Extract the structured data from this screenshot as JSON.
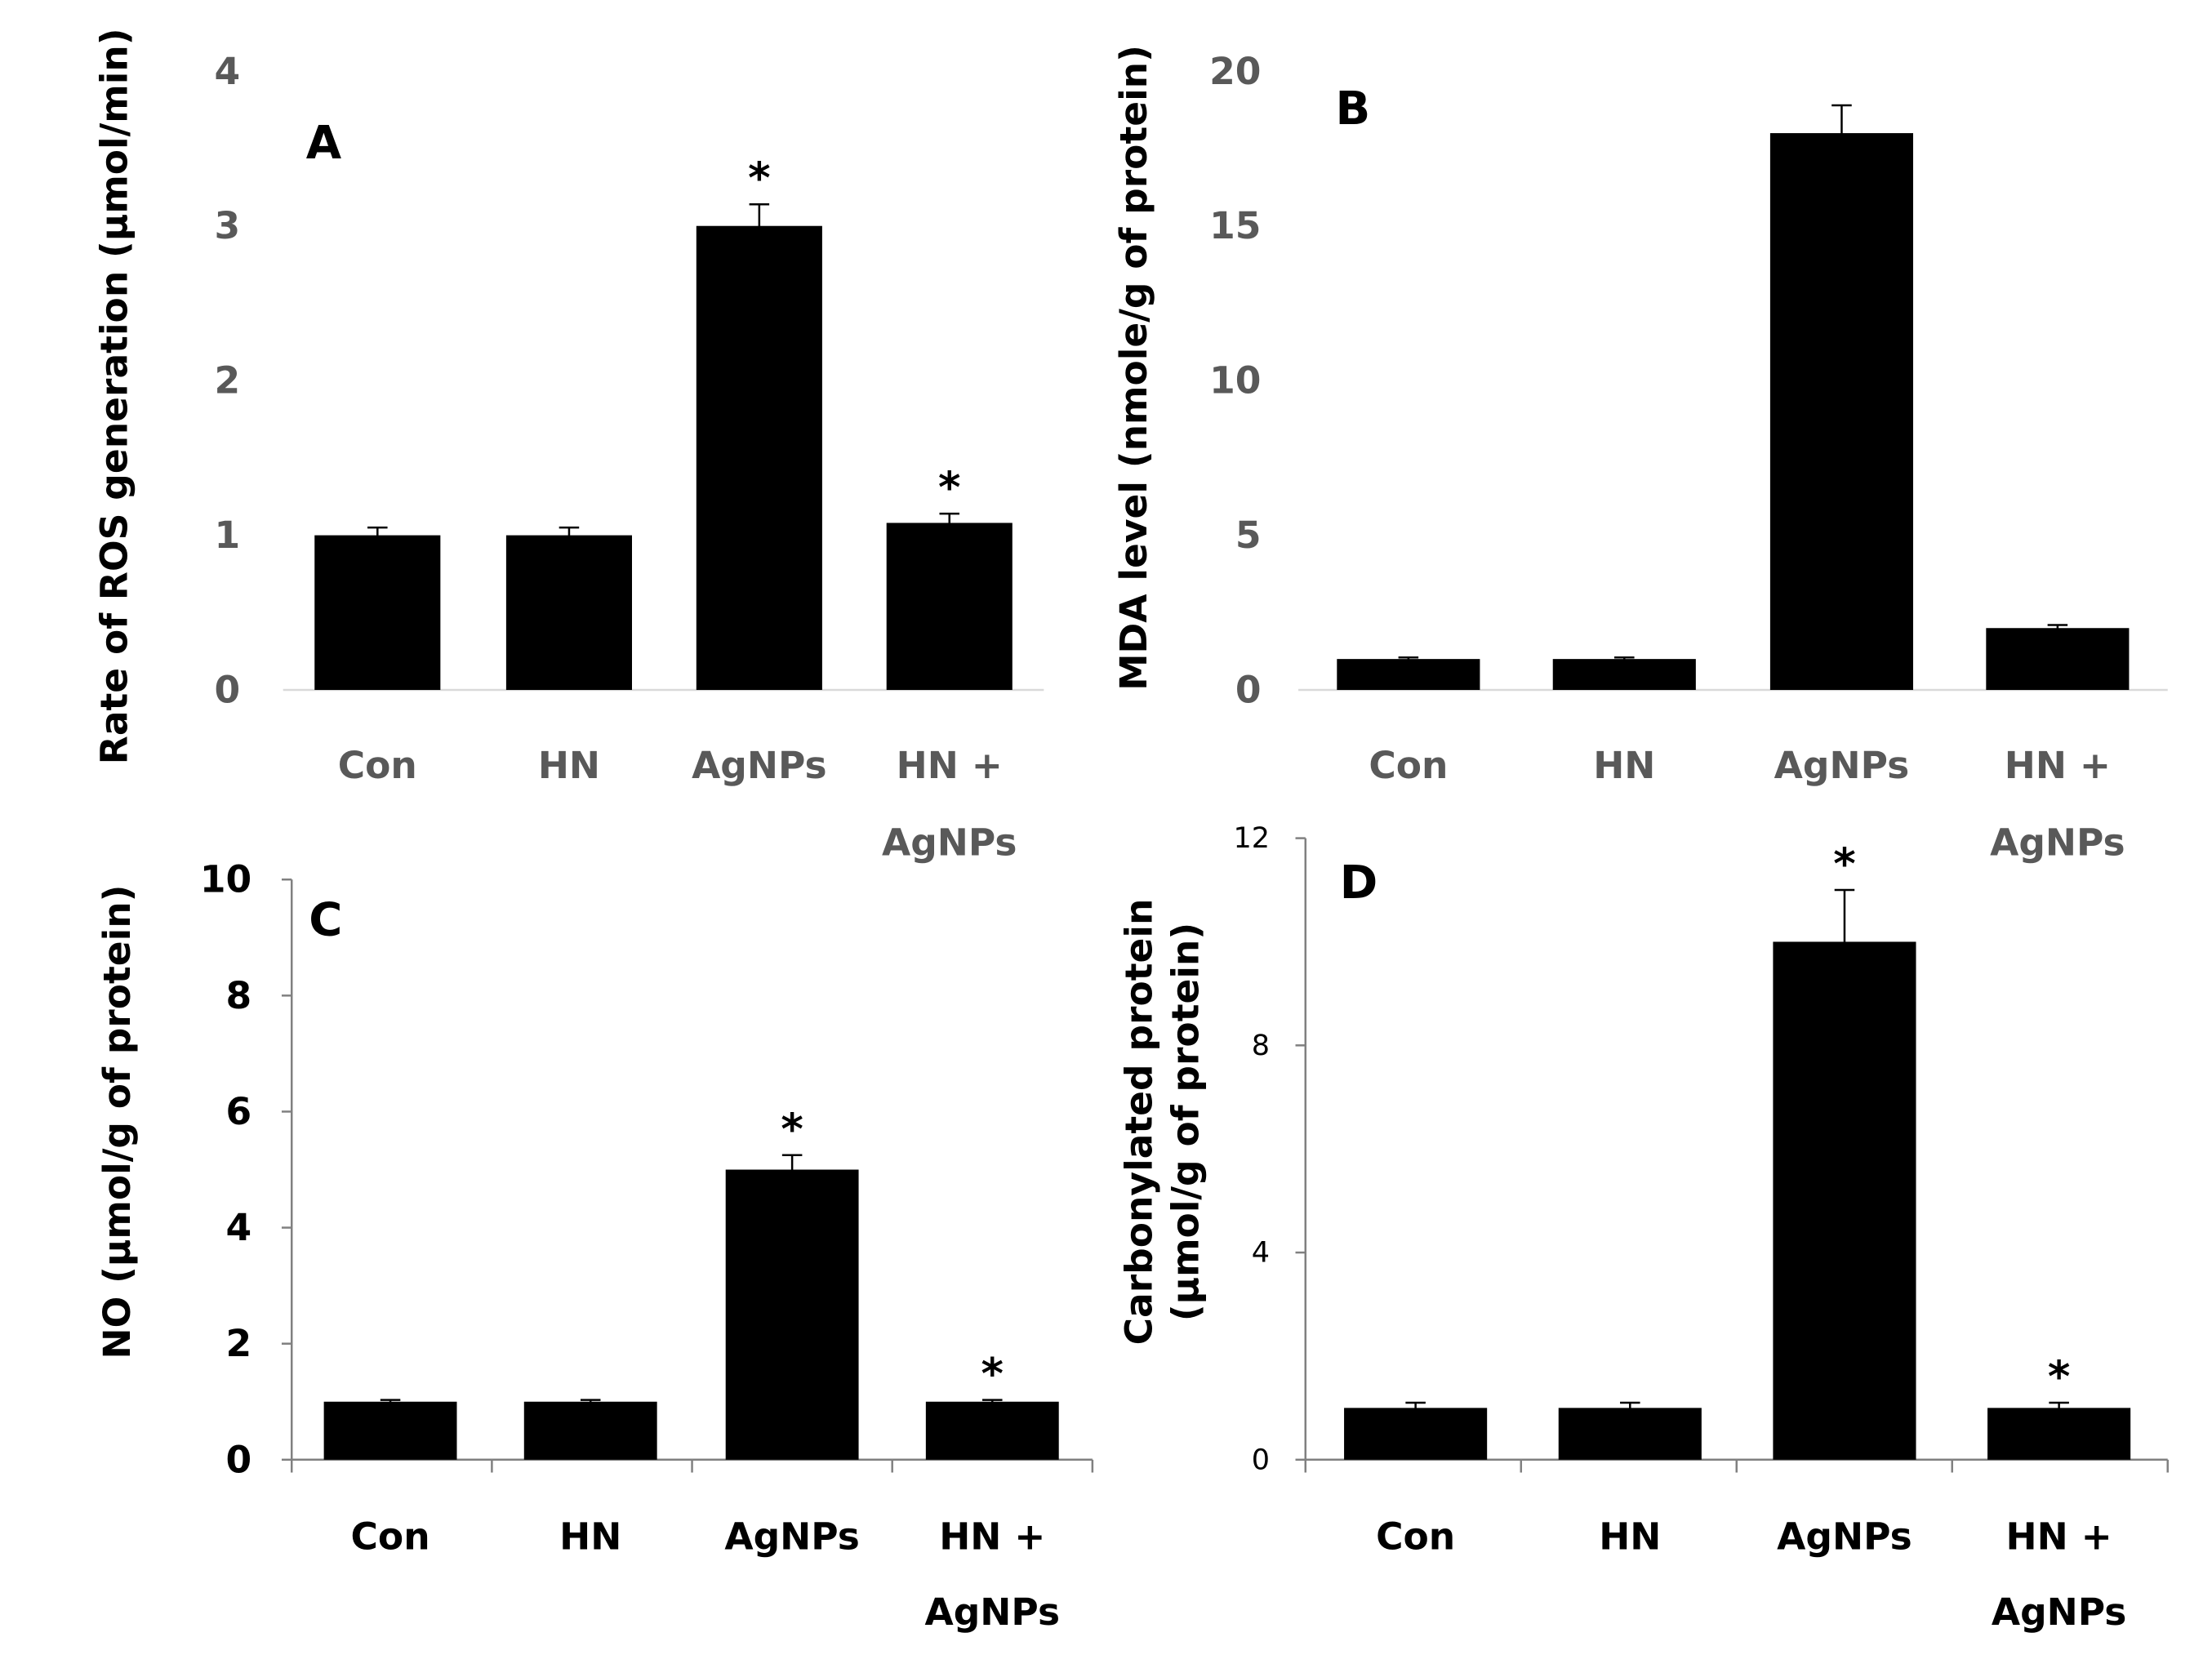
{
  "chart_data": [
    {
      "panel": "A",
      "type": "bar",
      "ylabel": "Rate of ROS generation (μmol/min)",
      "ylim": [
        0,
        4
      ],
      "yticks": [
        0,
        1,
        2,
        3,
        4
      ],
      "categories": [
        [
          "Con"
        ],
        [
          "HN"
        ],
        [
          "AgNPs"
        ],
        [
          "HN +",
          "AgNPs"
        ]
      ],
      "values": [
        1.0,
        1.0,
        3.0,
        1.08
      ],
      "errors": [
        0.05,
        0.05,
        0.14,
        0.06
      ],
      "stars": [
        "",
        "",
        "*",
        "*"
      ],
      "axis_color": "#d9d9d9",
      "text_color": "#595959"
    },
    {
      "panel": "B",
      "type": "bar",
      "ylabel": "MDA level  (nmole/g of protein)",
      "ylim": [
        0,
        20
      ],
      "yticks": [
        0,
        5,
        10,
        15,
        20
      ],
      "categories": [
        [
          "Con"
        ],
        [
          "HN"
        ],
        [
          "AgNPs"
        ],
        [
          "HN +",
          "AgNPs"
        ]
      ],
      "values": [
        1.0,
        1.0,
        18.0,
        2.0
      ],
      "errors": [
        0.05,
        0.05,
        0.9,
        0.1
      ],
      "stars": [
        "",
        "",
        "",
        ""
      ],
      "axis_color": "#d9d9d9",
      "text_color": "#595959"
    },
    {
      "panel": "C",
      "type": "bar",
      "ylabel": "NO (μmol/g of protein)",
      "ylim": [
        0,
        10
      ],
      "yticks": [
        0,
        2,
        4,
        6,
        8,
        10
      ],
      "categories": [
        [
          "Con"
        ],
        [
          "HN"
        ],
        [
          "AgNPs"
        ],
        [
          "HN +",
          "AgNPs"
        ]
      ],
      "values": [
        1.0,
        1.0,
        5.0,
        1.0
      ],
      "errors": [
        0.03,
        0.03,
        0.25,
        0.03
      ],
      "stars": [
        "",
        "",
        "*",
        "*"
      ],
      "axis_color": "#808080",
      "text_color": "#000000"
    },
    {
      "panel": "D",
      "type": "bar",
      "ylabel": [
        "Carbonylated protein",
        "(μmol/g of protein)"
      ],
      "ylim": [
        0,
        12
      ],
      "yticks": [
        0,
        4,
        8,
        12
      ],
      "categories": [
        [
          "Con"
        ],
        [
          "HN"
        ],
        [
          "AgNPs"
        ],
        [
          "HN +",
          "AgNPs"
        ]
      ],
      "values": [
        1.0,
        1.0,
        10.0,
        1.0
      ],
      "errors": [
        0.1,
        0.1,
        1.0,
        0.1
      ],
      "stars": [
        "",
        "",
        "*",
        "*"
      ],
      "axis_color": "#808080",
      "text_color": "#000000"
    }
  ]
}
